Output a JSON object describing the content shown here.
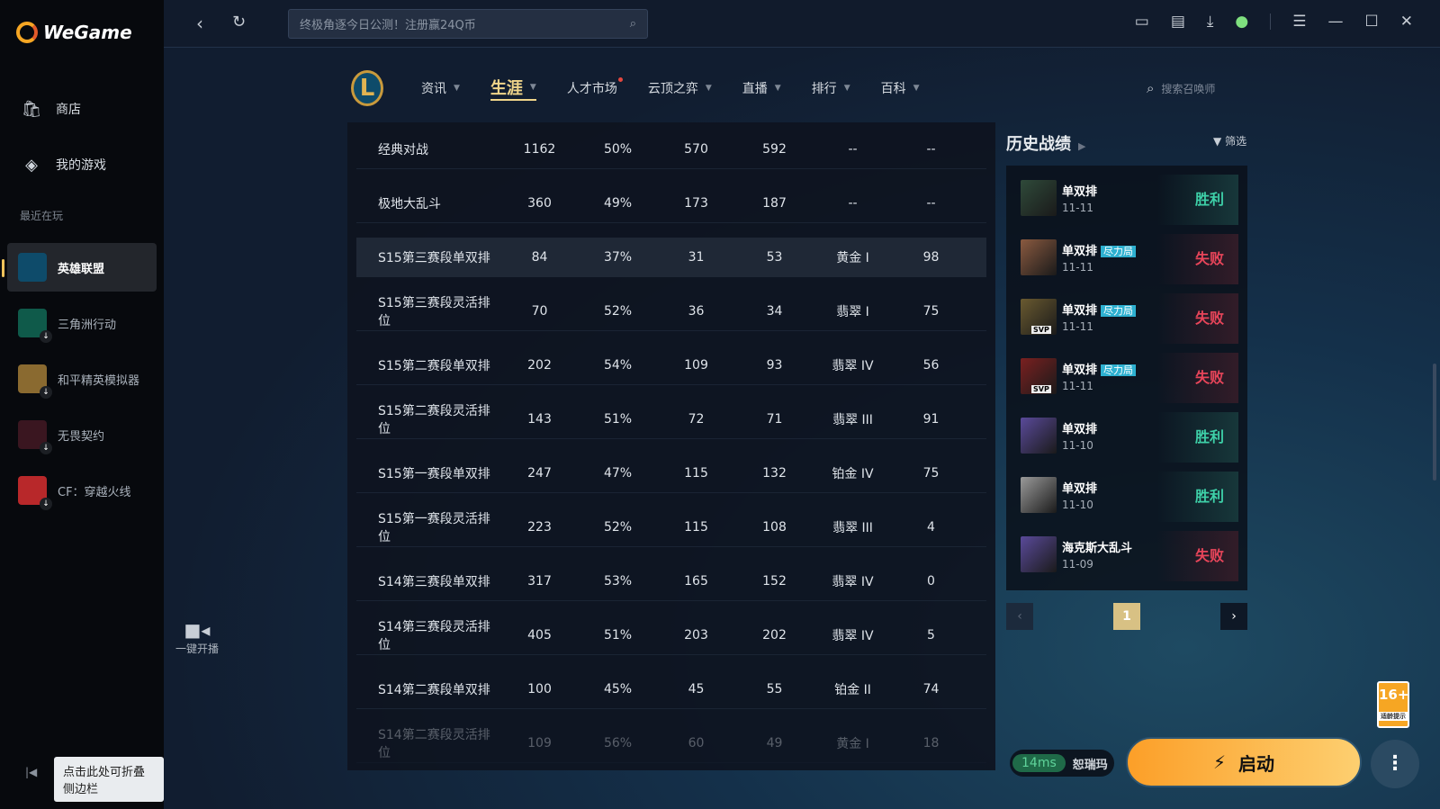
{
  "app": {
    "name": "WeGame"
  },
  "sidebar": {
    "items": [
      {
        "label": "商店",
        "icon": "shop-bag-icon"
      },
      {
        "label": "我的游戏",
        "icon": "games-icon"
      }
    ],
    "recent_label": "最近在玩",
    "games": [
      {
        "label": "英雄联盟",
        "active": true,
        "color": "#0e4b6a"
      },
      {
        "label": "三角洲行动",
        "color": "#0f5a4a"
      },
      {
        "label": "和平精英模拟器",
        "color": "#8a6a30"
      },
      {
        "label": "无畏契约",
        "color": "#3a1620"
      },
      {
        "label": "CF：穿越火线",
        "color": "#b8282a"
      }
    ],
    "collapse_tooltip": "点击此处可折叠侧边栏"
  },
  "topbar": {
    "search_placeholder": "终极角逐今日公测！注册赢24Q币"
  },
  "lol_nav": {
    "tabs": [
      {
        "label": "资讯",
        "caret": true
      },
      {
        "label": "生涯",
        "caret": true,
        "active": true
      },
      {
        "label": "人才市场",
        "dot": true
      },
      {
        "label": "云顶之弈",
        "caret": true
      },
      {
        "label": "直播",
        "caret": true
      },
      {
        "label": "排行",
        "caret": true
      },
      {
        "label": "百科",
        "caret": true
      }
    ],
    "summoner_search_placeholder": "搜索召唤师"
  },
  "stats_table": {
    "rows": [
      [
        "经典对战",
        "1162",
        "50%",
        "570",
        "592",
        "--",
        "--"
      ],
      [
        "极地大乱斗",
        "360",
        "49%",
        "173",
        "187",
        "--",
        "--"
      ],
      [
        "S15第三赛段单双排",
        "84",
        "37%",
        "31",
        "53",
        "黄金 I",
        "98"
      ],
      [
        "S15第三赛段灵活排位",
        "70",
        "52%",
        "36",
        "34",
        "翡翠 I",
        "75"
      ],
      [
        "S15第二赛段单双排",
        "202",
        "54%",
        "109",
        "93",
        "翡翠 IV",
        "56"
      ],
      [
        "S15第二赛段灵活排位",
        "143",
        "51%",
        "72",
        "71",
        "翡翠 III",
        "91"
      ],
      [
        "S15第一赛段单双排",
        "247",
        "47%",
        "115",
        "132",
        "铂金 IV",
        "75"
      ],
      [
        "S15第一赛段灵活排位",
        "223",
        "52%",
        "115",
        "108",
        "翡翠 III",
        "4"
      ],
      [
        "S14第三赛段单双排",
        "317",
        "53%",
        "165",
        "152",
        "翡翠 IV",
        "0"
      ],
      [
        "S14第三赛段灵活排位",
        "405",
        "51%",
        "203",
        "202",
        "翡翠 IV",
        "5"
      ],
      [
        "S14第二赛段单双排",
        "100",
        "45%",
        "45",
        "55",
        "铂金 II",
        "74"
      ],
      [
        "S14第二赛段灵活排位",
        "109",
        "56%",
        "60",
        "49",
        "黄金 I",
        "18"
      ]
    ],
    "highlighted_row": 2
  },
  "record_button": {
    "label": "一键开播"
  },
  "history": {
    "title": "历史战绩",
    "filter": "筛选",
    "matches": [
      {
        "mode": "单双排",
        "date": "11-11",
        "result": "胜利",
        "win": true,
        "color": "#2f4a3a"
      },
      {
        "mode": "单双排",
        "tag": "尽力局",
        "date": "11-11",
        "result": "失败",
        "win": false,
        "color": "#8a5a40"
      },
      {
        "mode": "单双排",
        "tag": "尽力局",
        "date": "11-11",
        "result": "失败",
        "win": false,
        "svp": "SVP",
        "color": "#6a5a30"
      },
      {
        "mode": "单双排",
        "tag": "尽力局",
        "date": "11-11",
        "result": "失败",
        "win": false,
        "svp": "SVP",
        "color": "#7a2020"
      },
      {
        "mode": "单双排",
        "date": "11-10",
        "result": "胜利",
        "win": true,
        "color": "#5a4a9a"
      },
      {
        "mode": "单双排",
        "date": "11-10",
        "result": "胜利",
        "win": true,
        "color": "#9a9a9a"
      },
      {
        "mode": "海克斯大乱斗",
        "date": "11-09",
        "result": "失败",
        "win": false,
        "color": "#5a4a9a"
      }
    ],
    "page": "1"
  },
  "age_rating": {
    "label": "16+",
    "note": "适龄提示"
  },
  "server": {
    "ping": "14ms",
    "name": "恕瑞玛"
  },
  "launch": {
    "label": "启动"
  },
  "colors": {
    "accent": "#fca52c",
    "win": "#3ed0a8",
    "lose": "#e8455a",
    "tab_active": "#f0d58a"
  }
}
